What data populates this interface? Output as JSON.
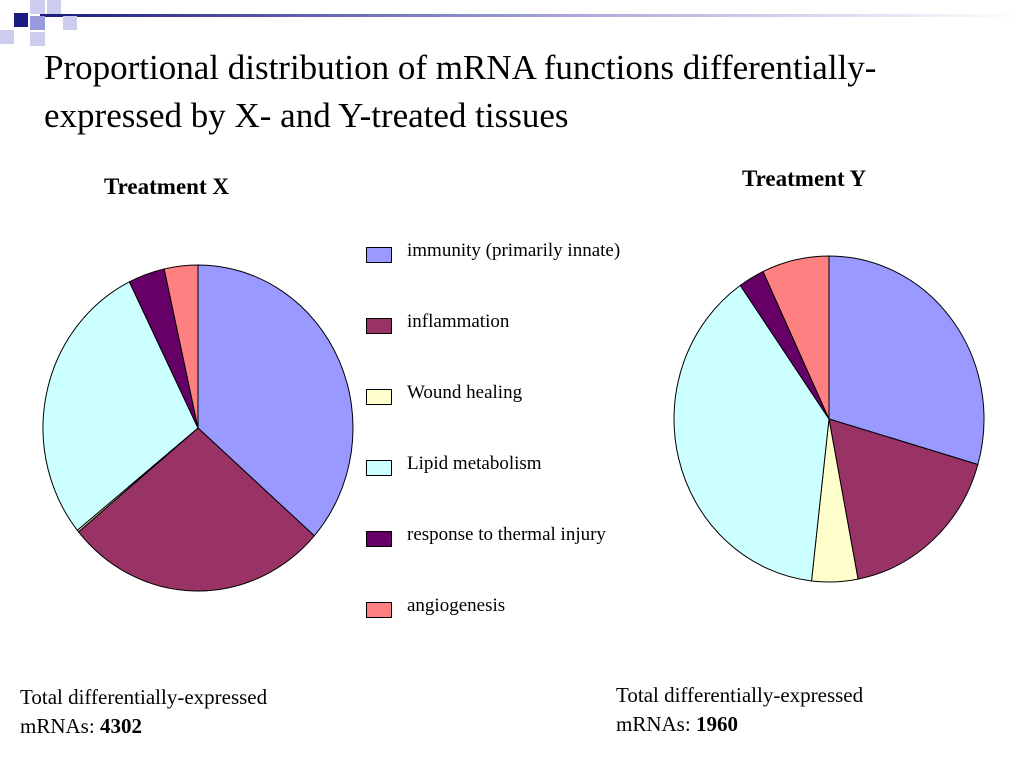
{
  "slide": {
    "title": "Proportional distribution of mRNA functions differentially-expressed by X- and Y-treated tissues"
  },
  "theme": {
    "deco_dark": "#1a1a80",
    "deco_mid": "#9999dd",
    "deco_light": "#ccccee"
  },
  "chart_data": [
    {
      "type": "pie",
      "title": "Treatment X",
      "categories": [
        "immunity (primarily innate)",
        "inflammation",
        "Wound healing",
        "Lipid metabolism",
        "response to thermal injury",
        "angiogenesis"
      ],
      "values": [
        36.5,
        27.5,
        0.2,
        28.5,
        3.8,
        3.5
      ],
      "colors": [
        "#9999ff",
        "#993366",
        "#ffffcc",
        "#ccffff",
        "#660066",
        "#ff8080"
      ],
      "total_label": "Total differentially-expressed mRNAs:",
      "total_value": "4302"
    },
    {
      "type": "pie",
      "title": "Treatment Y",
      "categories": [
        "immunity (primarily innate)",
        "inflammation",
        "Wound healing",
        "Lipid metabolism",
        "response to thermal injury",
        "angiogenesis"
      ],
      "values": [
        29.5,
        17.5,
        4.8,
        38.5,
        2.7,
        7.0
      ],
      "colors": [
        "#9999ff",
        "#993366",
        "#ffffcc",
        "#ccffff",
        "#660066",
        "#ff8080"
      ],
      "total_label": "Total differentially-expressed mRNAs:",
      "total_value": "1960"
    }
  ],
  "legend": {
    "items": [
      {
        "label": "immunity (primarily innate)",
        "color": "#9999ff"
      },
      {
        "label": "inflammation",
        "color": "#993366"
      },
      {
        "label": "Wound healing",
        "color": "#ffffcc"
      },
      {
        "label": "Lipid metabolism",
        "color": "#ccffff"
      },
      {
        "label": "response to thermal injury",
        "color": "#660066"
      },
      {
        "label": "angiogenesis",
        "color": "#ff8080"
      }
    ]
  }
}
